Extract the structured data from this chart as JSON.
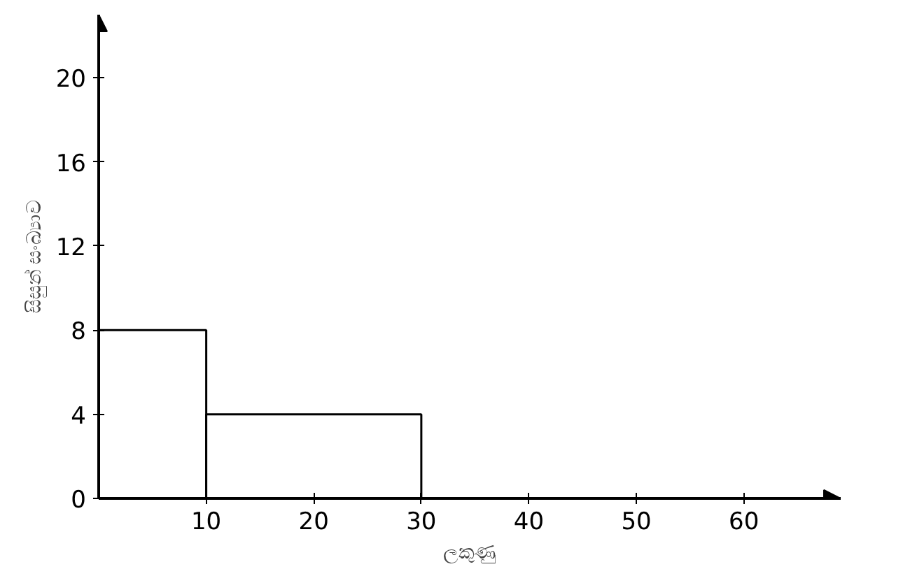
{
  "chart_data": {
    "type": "histogram",
    "xlabel": "ලකුණු",
    "ylabel": "සිසුන් සංඛ්‍යාව",
    "bins": [
      0,
      10,
      30
    ],
    "values": [
      8,
      4
    ],
    "color": "#ffffff",
    "xlim": [
      0,
      69
    ],
    "ylim": [
      0,
      23
    ],
    "xticks": [
      10,
      20,
      30,
      40,
      50,
      60
    ],
    "yticks": [
      0,
      4,
      8,
      12,
      16,
      20
    ],
    "grid": false
  }
}
